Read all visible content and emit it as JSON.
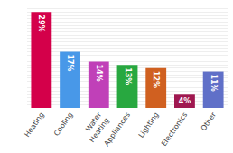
{
  "chart_data": {
    "type": "bar",
    "categories": [
      "Heating",
      "Cooling",
      "Water\nHeating",
      "Appliances",
      "Lighting",
      "Electronics",
      "Other"
    ],
    "values": [
      29,
      17,
      14,
      13,
      12,
      4,
      11
    ],
    "value_labels": [
      "29%",
      "17%",
      "14%",
      "13%",
      "12%",
      "4%",
      "11%"
    ],
    "data_labels": true,
    "colors": [
      "#d4004a",
      "#4898e8",
      "#c040b8",
      "#28a840",
      "#d06020",
      "#a01850",
      "#6070c8"
    ],
    "ylim": [
      0,
      31
    ],
    "yticks": [
      0,
      1,
      2,
      3,
      4,
      5,
      6,
      7,
      8,
      9,
      10,
      11,
      12,
      13,
      14,
      15,
      16,
      17,
      18,
      19,
      20,
      21,
      22,
      23,
      24,
      25,
      26,
      27,
      28,
      29,
      30,
      31
    ],
    "grid": true,
    "tick_labels": "x"
  }
}
